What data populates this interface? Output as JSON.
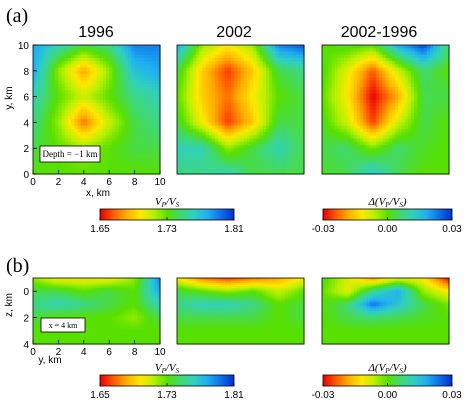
{
  "figure": {
    "panel_a_label": "(a)",
    "panel_b_label": "(b)"
  },
  "colorbars": [
    {
      "label_html": "V",
      "label": "VP/VS",
      "label_parts": [
        "V",
        "P",
        "/V",
        "S"
      ],
      "ticks": [
        "1.65",
        "1.73",
        "1.81"
      ]
    },
    {
      "label": "Δ(VP/VS)",
      "label_parts": [
        "Δ(V",
        "P",
        "/V",
        "S",
        ")"
      ],
      "ticks": [
        "-0.03",
        "0.00",
        "0.03"
      ]
    },
    {
      "label": "VP/VS",
      "label_parts": [
        "V",
        "P",
        "/V",
        "S"
      ],
      "ticks": [
        "1.65",
        "1.73",
        "1.81"
      ]
    },
    {
      "label": "Δ(VP/VS)",
      "label_parts": [
        "Δ(V",
        "P",
        "/V",
        "S",
        ")"
      ],
      "ticks": [
        "-0.03",
        "0.00",
        "0.03"
      ]
    }
  ],
  "colors": {
    "scale": [
      "#e60000",
      "#ff5a00",
      "#ffb000",
      "#ffe800",
      "#b8f000",
      "#58e000",
      "#40d870",
      "#30d0c0",
      "#20b0f0",
      "#1070e8",
      "#0030d0"
    ]
  },
  "chart_data": [
    {
      "type": "heatmap",
      "panel": "a",
      "title": "1996",
      "xlabel": "x, km",
      "ylabel": "y, km",
      "xlim": [
        0,
        10
      ],
      "ylim": [
        0,
        10
      ],
      "xticks": [
        "0",
        "2",
        "4",
        "6",
        "8",
        "10"
      ],
      "yticks": [
        "0",
        "2",
        "4",
        "6",
        "8",
        "10"
      ],
      "annotation": "Depth = −1 km",
      "colorscale_range": [
        1.65,
        1.81
      ],
      "x": [
        0,
        2,
        4,
        6,
        8,
        10
      ],
      "y": [
        10,
        8,
        6,
        4,
        2,
        0
      ],
      "values": [
        [
          1.78,
          1.76,
          1.74,
          1.75,
          1.79,
          1.79
        ],
        [
          1.78,
          1.72,
          1.68,
          1.72,
          1.77,
          1.78
        ],
        [
          1.76,
          1.73,
          1.71,
          1.73,
          1.75,
          1.76
        ],
        [
          1.75,
          1.72,
          1.67,
          1.71,
          1.74,
          1.75
        ],
        [
          1.74,
          1.73,
          1.72,
          1.73,
          1.74,
          1.74
        ],
        [
          1.73,
          1.73,
          1.73,
          1.73,
          1.73,
          1.73
        ]
      ]
    },
    {
      "type": "heatmap",
      "panel": "a",
      "title": "2002",
      "xlim": [
        0,
        10
      ],
      "ylim": [
        0,
        10
      ],
      "colorscale_range": [
        1.65,
        1.81
      ],
      "x": [
        0,
        2,
        4,
        6,
        8,
        10
      ],
      "y": [
        10,
        8,
        6,
        4,
        2,
        0
      ],
      "values": [
        [
          1.78,
          1.72,
          1.7,
          1.72,
          1.79,
          1.8
        ],
        [
          1.74,
          1.69,
          1.66,
          1.69,
          1.74,
          1.75
        ],
        [
          1.73,
          1.69,
          1.67,
          1.7,
          1.73,
          1.74
        ],
        [
          1.74,
          1.7,
          1.66,
          1.69,
          1.74,
          1.74
        ],
        [
          1.76,
          1.76,
          1.72,
          1.74,
          1.76,
          1.74
        ],
        [
          1.75,
          1.75,
          1.76,
          1.74,
          1.74,
          1.74
        ]
      ]
    },
    {
      "type": "heatmap",
      "panel": "a",
      "title": "2002-1996",
      "xlim": [
        0,
        10
      ],
      "ylim": [
        0,
        10
      ],
      "colorscale_range": [
        -0.03,
        0.03
      ],
      "x": [
        0,
        2,
        4,
        6,
        8,
        10
      ],
      "y": [
        10,
        8,
        6,
        4,
        2,
        0
      ],
      "values": [
        [
          0.0,
          0.002,
          0.0,
          0.018,
          0.028,
          0.006
        ],
        [
          0.002,
          -0.01,
          -0.024,
          -0.008,
          0.006,
          0.0
        ],
        [
          0.0,
          -0.012,
          -0.03,
          -0.018,
          0.004,
          0.004
        ],
        [
          0.002,
          -0.008,
          -0.026,
          -0.008,
          0.004,
          0.0
        ],
        [
          0.004,
          0.006,
          -0.002,
          0.006,
          0.002,
          0.0
        ],
        [
          0.002,
          0.004,
          0.014,
          0.004,
          0.0,
          0.0
        ]
      ]
    },
    {
      "type": "heatmap",
      "panel": "b",
      "title": "",
      "xlabel": "y, km",
      "ylabel": "z, km",
      "xlim": [
        0,
        10
      ],
      "ylim": [
        4,
        -1
      ],
      "xticks": [
        "0",
        "2",
        "4",
        "6",
        "8",
        "10"
      ],
      "yticks": [
        "0",
        "2",
        "4"
      ],
      "annotation": "x = 4 km",
      "colorscale_range": [
        1.65,
        1.81
      ],
      "x": [
        0,
        2,
        4,
        6,
        8,
        10
      ],
      "y": [
        -1,
        0,
        1,
        2,
        3,
        4
      ],
      "values": [
        [
          1.72,
          1.7,
          1.7,
          1.7,
          1.72,
          1.79
        ],
        [
          1.74,
          1.74,
          1.73,
          1.74,
          1.73,
          1.78
        ],
        [
          1.75,
          1.76,
          1.75,
          1.74,
          1.73,
          1.76
        ],
        [
          1.74,
          1.73,
          1.73,
          1.73,
          1.72,
          1.74
        ],
        [
          1.73,
          1.73,
          1.73,
          1.73,
          1.73,
          1.73
        ],
        [
          1.73,
          1.73,
          1.73,
          1.73,
          1.73,
          1.73
        ]
      ]
    },
    {
      "type": "heatmap",
      "panel": "b",
      "title": "",
      "xlim": [
        0,
        10
      ],
      "ylim": [
        4,
        -1
      ],
      "colorscale_range": [
        1.65,
        1.81
      ],
      "x": [
        0,
        2,
        4,
        6,
        8,
        10
      ],
      "y": [
        -1,
        0,
        1,
        2,
        3,
        4
      ],
      "values": [
        [
          1.7,
          1.67,
          1.66,
          1.67,
          1.68,
          1.7
        ],
        [
          1.74,
          1.73,
          1.72,
          1.73,
          1.71,
          1.73
        ],
        [
          1.75,
          1.76,
          1.76,
          1.75,
          1.73,
          1.74
        ],
        [
          1.74,
          1.74,
          1.74,
          1.74,
          1.73,
          1.74
        ],
        [
          1.73,
          1.73,
          1.73,
          1.73,
          1.73,
          1.73
        ],
        [
          1.73,
          1.73,
          1.73,
          1.73,
          1.73,
          1.73
        ]
      ]
    },
    {
      "type": "heatmap",
      "panel": "b",
      "title": "",
      "xlim": [
        0,
        10
      ],
      "ylim": [
        4,
        -1
      ],
      "colorscale_range": [
        -0.03,
        0.03
      ],
      "x": [
        0,
        2,
        4,
        6,
        8,
        10
      ],
      "y": [
        -1,
        0,
        1,
        2,
        3,
        4
      ],
      "values": [
        [
          0.002,
          -0.008,
          -0.02,
          -0.01,
          -0.012,
          -0.03
        ],
        [
          0.0,
          -0.01,
          0.008,
          0.018,
          -0.004,
          -0.012
        ],
        [
          0.0,
          0.006,
          0.024,
          0.014,
          0.004,
          -0.002
        ],
        [
          0.0,
          0.004,
          0.006,
          0.004,
          0.002,
          0.0
        ],
        [
          0.0,
          0.0,
          0.0,
          0.0,
          0.0,
          0.0
        ],
        [
          0.0,
          0.0,
          0.0,
          0.0,
          0.0,
          0.0
        ]
      ]
    }
  ]
}
